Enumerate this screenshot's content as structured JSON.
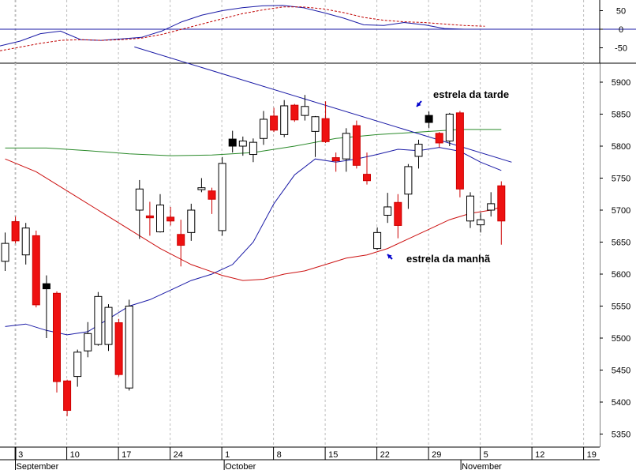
{
  "chart_data": [
    {
      "type": "line",
      "title": "",
      "xlabel": "",
      "ylabel": "",
      "ylim": [
        -90,
        75
      ],
      "y_ticks": [
        50,
        0,
        -50
      ],
      "y_tick_labels": [
        "50",
        "0",
        "-50"
      ],
      "grid": true,
      "reference_line": 0,
      "x": [
        0,
        4,
        8,
        12,
        16,
        20,
        24,
        28,
        32,
        36,
        40,
        44,
        48,
        52,
        56,
        60,
        64,
        68,
        72,
        76,
        80,
        84,
        88,
        92,
        96
      ],
      "series": [
        {
          "color": "#1a1aa6",
          "style": "solid",
          "values": [
            -45,
            -32,
            -12,
            -5,
            -28,
            -30,
            -26,
            -22,
            -5,
            20,
            38,
            50,
            58,
            63,
            64,
            58,
            45,
            30,
            12,
            10,
            18,
            12,
            2,
            0,
            0
          ]
        },
        {
          "color": "#c00000",
          "style": "dashed",
          "values": [
            -58,
            -48,
            -38,
            -30,
            -28,
            -30,
            -28,
            -24,
            -14,
            0,
            14,
            28,
            42,
            52,
            60,
            60,
            55,
            45,
            32,
            24,
            20,
            18,
            14,
            10,
            8
          ]
        }
      ]
    },
    {
      "type": "candlestick",
      "title": "",
      "xlabel": "",
      "ylabel": "",
      "ylim": [
        5330,
        5930
      ],
      "y_ticks": [
        5350,
        5400,
        5450,
        5500,
        5550,
        5600,
        5650,
        5700,
        5750,
        5800,
        5850,
        5900
      ],
      "y_tick_labels": [
        "5350",
        "5400",
        "5450",
        "5500",
        "5550",
        "5600",
        "5650",
        "5700",
        "5750",
        "5800",
        "5850",
        "5900"
      ],
      "grid": true,
      "x_ticks": [
        1,
        5,
        10,
        15,
        20,
        25,
        30,
        35,
        40,
        45,
        50,
        55,
        60,
        65,
        70
      ],
      "x_tick_labels": [
        "3",
        "10",
        "17",
        "24",
        "1",
        "8",
        "15",
        "22",
        "29",
        "5",
        "12",
        "19"
      ],
      "x_tick_positions": [
        1,
        6,
        11,
        16,
        21,
        26,
        31,
        36,
        41,
        46,
        51,
        56
      ],
      "month_labels": [
        "September",
        "October",
        "November"
      ],
      "month_positions": [
        0,
        20.2,
        43.1
      ],
      "candles": [
        {
          "x": 0,
          "open": 5620,
          "high": 5665,
          "low": 5605,
          "close": 5648,
          "fill": "open"
        },
        {
          "x": 1,
          "open": 5682,
          "high": 5690,
          "low": 5648,
          "close": 5652,
          "fill": "red"
        },
        {
          "x": 2,
          "open": 5630,
          "high": 5680,
          "low": 5615,
          "close": 5672,
          "fill": "open"
        },
        {
          "x": 3,
          "open": 5660,
          "high": 5668,
          "low": 5548,
          "close": 5552,
          "fill": "red"
        },
        {
          "x": 4,
          "open": 5585,
          "high": 5598,
          "low": 5500,
          "close": 5577,
          "fill": "black"
        },
        {
          "x": 5,
          "open": 5570,
          "high": 5573,
          "low": 5415,
          "close": 5432,
          "fill": "red"
        },
        {
          "x": 6,
          "open": 5433,
          "high": 5435,
          "low": 5378,
          "close": 5387,
          "fill": "red"
        },
        {
          "x": 7,
          "open": 5440,
          "high": 5482,
          "low": 5424,
          "close": 5478,
          "fill": "open"
        },
        {
          "x": 8,
          "open": 5480,
          "high": 5525,
          "low": 5470,
          "close": 5507,
          "fill": "open"
        },
        {
          "x": 9,
          "open": 5490,
          "high": 5572,
          "low": 5488,
          "close": 5565,
          "fill": "open"
        },
        {
          "x": 10,
          "open": 5548,
          "high": 5553,
          "low": 5480,
          "close": 5490,
          "fill": "open"
        },
        {
          "x": 11,
          "open": 5524,
          "high": 5530,
          "low": 5440,
          "close": 5443,
          "fill": "red"
        },
        {
          "x": 12,
          "open": 5422,
          "high": 5560,
          "low": 5418,
          "close": 5550,
          "fill": "open"
        },
        {
          "x": 13,
          "open": 5700,
          "high": 5747,
          "low": 5655,
          "close": 5733,
          "fill": "open"
        },
        {
          "x": 14,
          "open": 5688,
          "high": 5713,
          "low": 5660,
          "close": 5691,
          "fill": "red"
        },
        {
          "x": 15,
          "open": 5666,
          "high": 5725,
          "low": 5665,
          "close": 5708,
          "fill": "open"
        },
        {
          "x": 16,
          "open": 5689,
          "high": 5705,
          "low": 5676,
          "close": 5683,
          "fill": "red"
        },
        {
          "x": 17,
          "open": 5662,
          "high": 5685,
          "low": 5612,
          "close": 5645,
          "fill": "red"
        },
        {
          "x": 18,
          "open": 5665,
          "high": 5710,
          "low": 5652,
          "close": 5700,
          "fill": "open"
        },
        {
          "x": 19,
          "open": 5732,
          "high": 5750,
          "low": 5728,
          "close": 5735,
          "fill": "open"
        },
        {
          "x": 20,
          "open": 5730,
          "high": 5735,
          "low": 5694,
          "close": 5717,
          "fill": "red"
        },
        {
          "x": 21,
          "open": 5668,
          "high": 5783,
          "low": 5660,
          "close": 5773,
          "fill": "open"
        },
        {
          "x": 22,
          "open": 5800,
          "high": 5824,
          "low": 5790,
          "close": 5811,
          "fill": "black"
        },
        {
          "x": 23,
          "open": 5800,
          "high": 5815,
          "low": 5785,
          "close": 5808,
          "fill": "open"
        },
        {
          "x": 24,
          "open": 5787,
          "high": 5812,
          "low": 5775,
          "close": 5806,
          "fill": "open"
        },
        {
          "x": 25,
          "open": 5812,
          "high": 5855,
          "low": 5802,
          "close": 5842,
          "fill": "open"
        },
        {
          "x": 26,
          "open": 5847,
          "high": 5860,
          "low": 5822,
          "close": 5825,
          "fill": "red"
        },
        {
          "x": 27,
          "open": 5818,
          "high": 5872,
          "low": 5814,
          "close": 5863,
          "fill": "open"
        },
        {
          "x": 28,
          "open": 5864,
          "high": 5866,
          "low": 5838,
          "close": 5841,
          "fill": "red"
        },
        {
          "x": 29,
          "open": 5848,
          "high": 5880,
          "low": 5840,
          "close": 5862,
          "fill": "open"
        },
        {
          "x": 30,
          "open": 5823,
          "high": 5847,
          "low": 5783,
          "close": 5846,
          "fill": "open"
        },
        {
          "x": 31,
          "open": 5843,
          "high": 5870,
          "low": 5805,
          "close": 5807,
          "fill": "red"
        },
        {
          "x": 32,
          "open": 5782,
          "high": 5790,
          "low": 5760,
          "close": 5777,
          "fill": "red"
        },
        {
          "x": 33,
          "open": 5780,
          "high": 5828,
          "low": 5760,
          "close": 5820,
          "fill": "open"
        },
        {
          "x": 34,
          "open": 5832,
          "high": 5840,
          "low": 5765,
          "close": 5770,
          "fill": "red"
        },
        {
          "x": 35,
          "open": 5756,
          "high": 5790,
          "low": 5740,
          "close": 5746,
          "fill": "red"
        },
        {
          "x": 36,
          "open": 5640,
          "high": 5673,
          "low": 5638,
          "close": 5665,
          "fill": "open"
        },
        {
          "x": 37,
          "open": 5692,
          "high": 5727,
          "low": 5680,
          "close": 5705,
          "fill": "open"
        },
        {
          "x": 38,
          "open": 5712,
          "high": 5725,
          "low": 5656,
          "close": 5676,
          "fill": "red"
        },
        {
          "x": 39,
          "open": 5725,
          "high": 5772,
          "low": 5702,
          "close": 5768,
          "fill": "open"
        },
        {
          "x": 40,
          "open": 5784,
          "high": 5810,
          "low": 5765,
          "close": 5803,
          "fill": "open"
        },
        {
          "x": 41,
          "open": 5837,
          "high": 5854,
          "low": 5828,
          "close": 5848,
          "fill": "black"
        },
        {
          "x": 42,
          "open": 5820,
          "high": 5822,
          "low": 5798,
          "close": 5805,
          "fill": "red"
        },
        {
          "x": 43,
          "open": 5808,
          "high": 5852,
          "low": 5800,
          "close": 5850,
          "fill": "open"
        },
        {
          "x": 44,
          "open": 5852,
          "high": 5855,
          "low": 5720,
          "close": 5733,
          "fill": "red"
        },
        {
          "x": 45,
          "open": 5683,
          "high": 5728,
          "low": 5672,
          "close": 5722,
          "fill": "open"
        },
        {
          "x": 46,
          "open": 5685,
          "high": 5696,
          "low": 5665,
          "close": 5677,
          "fill": "open"
        },
        {
          "x": 47,
          "open": 5700,
          "high": 5728,
          "low": 5690,
          "close": 5710,
          "fill": "open"
        },
        {
          "x": 48,
          "open": 5738,
          "high": 5745,
          "low": 5646,
          "close": 5683,
          "fill": "red"
        }
      ],
      "series": [
        {
          "color": "#2a8a2a",
          "values": [
            [
              0,
              5797
            ],
            [
              4,
              5797
            ],
            [
              8,
              5793
            ],
            [
              12,
              5788
            ],
            [
              16,
              5785
            ],
            [
              20,
              5786
            ],
            [
              24,
              5790
            ],
            [
              28,
              5800
            ],
            [
              32,
              5812
            ],
            [
              36,
              5818
            ],
            [
              40,
              5822
            ],
            [
              44,
              5826
            ],
            [
              48,
              5826
            ]
          ]
        },
        {
          "color": "#1a1aa6",
          "values": [
            [
              0,
              5518
            ],
            [
              2,
              5522
            ],
            [
              4,
              5512
            ],
            [
              6,
              5505
            ],
            [
              8,
              5510
            ],
            [
              10,
              5530
            ],
            [
              12,
              5550
            ],
            [
              14,
              5560
            ],
            [
              16,
              5575
            ],
            [
              18,
              5590
            ],
            [
              20,
              5600
            ],
            [
              22,
              5615
            ],
            [
              24,
              5650
            ],
            [
              26,
              5710
            ],
            [
              28,
              5755
            ],
            [
              30,
              5780
            ],
            [
              32,
              5775
            ],
            [
              34,
              5780
            ],
            [
              36,
              5787
            ],
            [
              38,
              5795
            ],
            [
              40,
              5793
            ],
            [
              42,
              5798
            ],
            [
              44,
              5792
            ],
            [
              46,
              5775
            ],
            [
              48,
              5762
            ]
          ]
        },
        {
          "color": "#cc1111",
          "values": [
            [
              0,
              5780
            ],
            [
              3,
              5760
            ],
            [
              6,
              5730
            ],
            [
              9,
              5700
            ],
            [
              12,
              5670
            ],
            [
              15,
              5640
            ],
            [
              18,
              5615
            ],
            [
              21,
              5598
            ],
            [
              23,
              5590
            ],
            [
              25,
              5592
            ],
            [
              27,
              5600
            ],
            [
              29,
              5605
            ],
            [
              31,
              5615
            ],
            [
              33,
              5625
            ],
            [
              35,
              5630
            ],
            [
              37,
              5640
            ],
            [
              39,
              5655
            ],
            [
              41,
              5670
            ],
            [
              43,
              5685
            ],
            [
              45,
              5695
            ],
            [
              47,
              5700
            ],
            [
              48,
              5705
            ]
          ]
        },
        {
          "color": "#1a1aa6",
          "values": [
            [
              12.5,
              5955
            ],
            [
              49,
              5775
            ]
          ]
        }
      ],
      "annotations": [
        {
          "text": "estrela da tarde",
          "x": 41,
          "y": 5848
        },
        {
          "text": "estrela da manhã",
          "x": 36,
          "y": 5640
        }
      ]
    }
  ]
}
